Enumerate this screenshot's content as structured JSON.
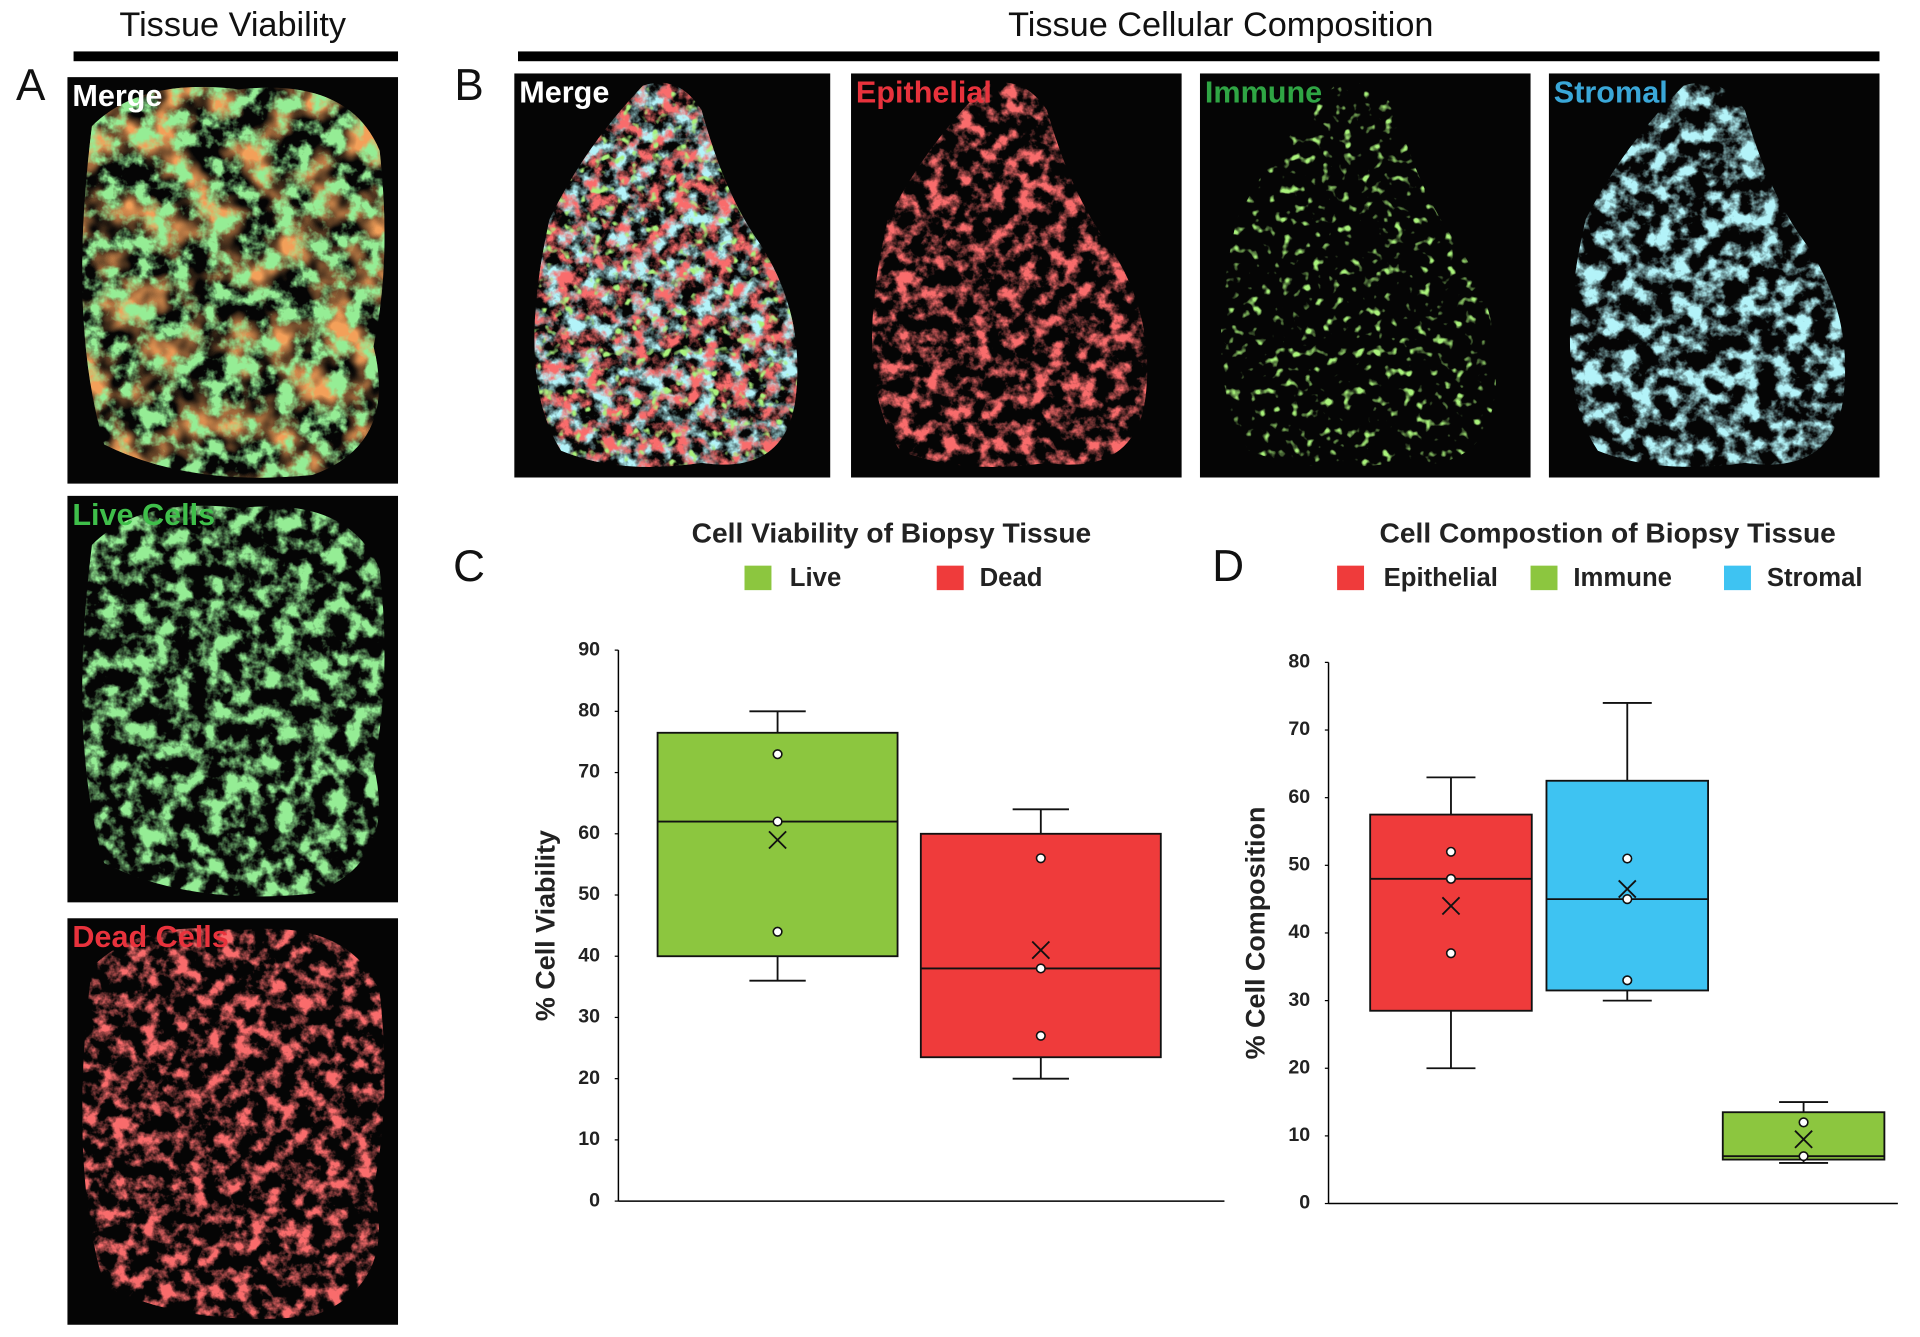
{
  "figure": {
    "headers": [
      "Tissue Viability",
      "Tissue Cellular Composition"
    ],
    "panel_letters": [
      "A",
      "B",
      "C",
      "D"
    ],
    "panel_a_labels": [
      "Merge",
      "Live Cells",
      "Dead Cells"
    ],
    "panel_b_labels": [
      "Merge",
      "Epithelial",
      "Immune",
      "Stromal"
    ]
  },
  "chart_data": [
    {
      "type": "box",
      "title": "Cell Viability of Biopsy Tissue",
      "ylabel": "% Cell Viability",
      "ylim": [
        0,
        90
      ],
      "yticks": [
        0,
        10,
        20,
        30,
        40,
        50,
        60,
        70,
        80,
        90
      ],
      "series": [
        {
          "name": "Live",
          "color": "#8cc63f",
          "min": 36,
          "q1": 40,
          "median": 62,
          "q3": 76.5,
          "max": 80,
          "mean": 59,
          "points": [
            73,
            62,
            44
          ]
        },
        {
          "name": "Dead",
          "color": "#ef3b3b",
          "min": 20,
          "q1": 23.5,
          "median": 38,
          "q3": 60,
          "max": 64,
          "mean": 41,
          "points": [
            56,
            38,
            27
          ]
        }
      ]
    },
    {
      "type": "box",
      "title": "Cell Compostion of Biopsy Tissue",
      "ylabel": "% Cell Composition",
      "ylim": [
        0,
        80
      ],
      "yticks": [
        0,
        10,
        20,
        30,
        40,
        50,
        60,
        70,
        80
      ],
      "series": [
        {
          "name": "Epithelial",
          "color": "#ef3b3b",
          "min": 20,
          "q1": 28.5,
          "median": 48,
          "q3": 57.5,
          "max": 63,
          "mean": 44,
          "points": [
            52,
            48,
            37
          ]
        },
        {
          "name": "Immune",
          "color": "#8cc63f",
          "min": 6,
          "q1": 6.5,
          "median": 7,
          "q3": 13.5,
          "max": 15,
          "mean": 9.5,
          "points": [
            12,
            7
          ]
        },
        {
          "name": "Stromal",
          "color": "#3ec3f2",
          "min": 30,
          "q1": 31.5,
          "median": 45,
          "q3": 62.5,
          "max": 74,
          "mean": 46.5,
          "points": [
            51,
            45,
            33
          ]
        }
      ]
    }
  ]
}
